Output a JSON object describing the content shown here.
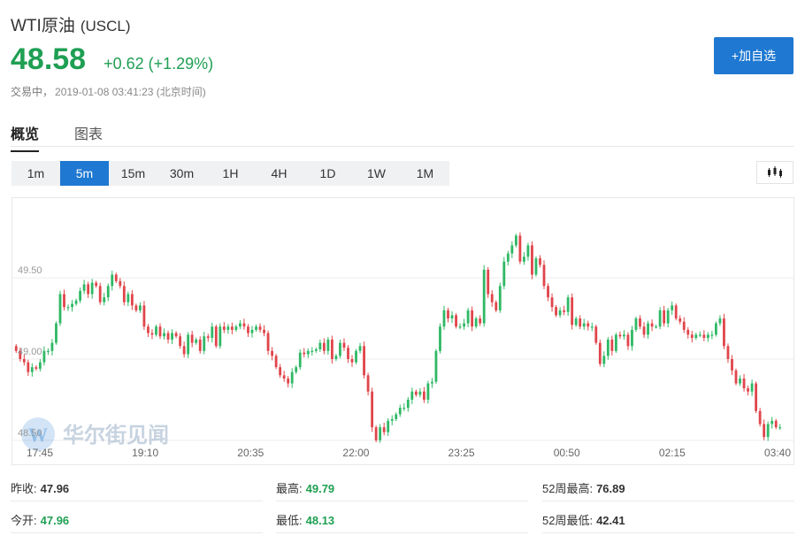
{
  "header": {
    "name": "WTI原油",
    "code": "(USCL)",
    "price": "48.58",
    "change": "+0.62 (+1.29%)",
    "status": "交易中，",
    "time": "2019-01-08 03:41:23 (北京时间)",
    "add_button": "+加自选"
  },
  "tabs": [
    {
      "label": "概览",
      "active": true
    },
    {
      "label": "图表",
      "active": false
    }
  ],
  "periods": [
    {
      "label": "1m",
      "active": false
    },
    {
      "label": "5m",
      "active": true
    },
    {
      "label": "15m",
      "active": false
    },
    {
      "label": "30m",
      "active": false
    },
    {
      "label": "1H",
      "active": false
    },
    {
      "label": "4H",
      "active": false
    },
    {
      "label": "1D",
      "active": false
    },
    {
      "label": "1W",
      "active": false
    },
    {
      "label": "1M",
      "active": false
    }
  ],
  "chart_type_icon": "candlestick-icon",
  "watermark": {
    "text": "华尔街见闻",
    "logo_letter": "W"
  },
  "colors": {
    "up": "#2fb865",
    "down": "#e0454a",
    "accent": "#1f78d1",
    "price": "#1f9f53"
  },
  "chart_data": {
    "type": "candlestick",
    "interval": "5m",
    "ylim": [
      48.45,
      49.98
    ],
    "y_ticks": [
      48.5,
      49.0,
      49.5
    ],
    "y_tick_labels": [
      "48.50",
      "49.00",
      "49.50"
    ],
    "x_ticks": [
      "17:45",
      "19:10",
      "20:35",
      "22:00",
      "23:25",
      "00:50",
      "02:15",
      "03:40"
    ],
    "grid": true,
    "closes": [
      49.05,
      49.0,
      48.98,
      48.92,
      48.95,
      48.94,
      48.98,
      49.05,
      49.05,
      49.1,
      49.22,
      49.4,
      49.32,
      49.32,
      49.34,
      49.36,
      49.42,
      49.46,
      49.4,
      49.47,
      49.45,
      49.35,
      49.38,
      49.45,
      49.52,
      49.48,
      49.45,
      49.35,
      49.4,
      49.33,
      49.3,
      49.33,
      49.2,
      49.16,
      49.15,
      49.2,
      49.14,
      49.16,
      49.12,
      49.16,
      49.14,
      49.08,
      49.03,
      49.15,
      49.1,
      49.12,
      49.05,
      49.14,
      49.13,
      49.2,
      49.08,
      49.2,
      49.18,
      49.2,
      49.18,
      49.2,
      49.22,
      49.2,
      49.16,
      49.18,
      49.2,
      49.18,
      49.16,
      49.05,
      49.02,
      48.95,
      48.9,
      48.88,
      48.85,
      48.92,
      48.95,
      49.04,
      49.03,
      49.05,
      49.05,
      49.06,
      49.1,
      49.05,
      49.12,
      49.0,
      49.02,
      49.1,
      49.07,
      49.0,
      48.98,
      49.05,
      49.08,
      48.9,
      48.8,
      48.58,
      48.5,
      48.58,
      48.55,
      48.62,
      48.63,
      48.66,
      48.7,
      48.7,
      48.75,
      48.8,
      48.78,
      48.8,
      48.75,
      48.85,
      48.86,
      49.05,
      49.2,
      49.3,
      49.25,
      49.27,
      49.2,
      49.2,
      49.22,
      49.3,
      49.2,
      49.25,
      49.22,
      49.55,
      49.4,
      49.35,
      49.3,
      49.45,
      49.6,
      49.65,
      49.7,
      49.76,
      49.6,
      49.63,
      49.7,
      49.52,
      49.62,
      49.58,
      49.45,
      49.38,
      49.32,
      49.27,
      49.3,
      49.29,
      49.38,
      49.21,
      49.25,
      49.2,
      49.22,
      49.2,
      49.2,
      49.1,
      48.97,
      49.02,
      49.12,
      49.05,
      49.15,
      49.14,
      49.15,
      49.08,
      49.18,
      49.25,
      49.2,
      49.15,
      49.22,
      49.2,
      49.2,
      49.3,
      49.22,
      49.3,
      49.33,
      49.25,
      49.23,
      49.18,
      49.15,
      49.13,
      49.15,
      49.15,
      49.13,
      49.15,
      49.15,
      49.22,
      49.25,
      49.08,
      49.0,
      48.93,
      48.85,
      48.88,
      48.82,
      48.8,
      48.85,
      48.68,
      48.6,
      48.52,
      48.6,
      48.62,
      48.58,
      48.58
    ]
  },
  "stats": [
    {
      "label": "昨收:",
      "value": "47.96",
      "green": false
    },
    {
      "label": "最高:",
      "value": "49.79",
      "green": true
    },
    {
      "label": "52周最高:",
      "value": "76.89",
      "green": false
    },
    {
      "label": "今开:",
      "value": "47.96",
      "green": true
    },
    {
      "label": "最低:",
      "value": "48.13",
      "green": true
    },
    {
      "label": "52周最低:",
      "value": "42.41",
      "green": false
    }
  ]
}
